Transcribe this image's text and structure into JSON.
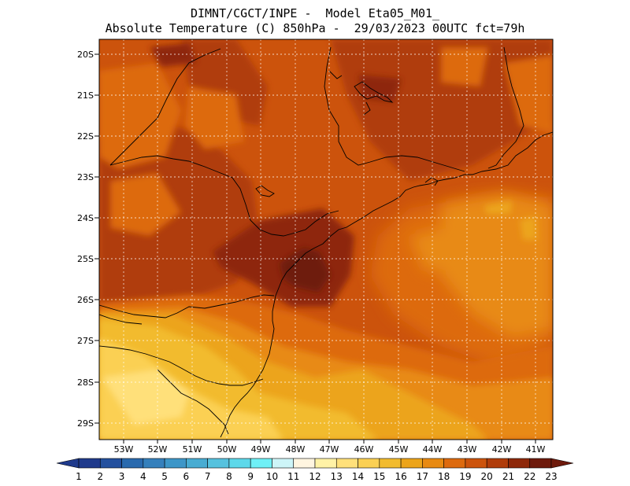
{
  "header": {
    "line1": "DIMNT/CGCT/INPE -  Model Eta05_M01_",
    "line2": "Absolute Temperature (C) 850hPa -  29/03/2023 00UTC fct=79h"
  },
  "map": {
    "region": "south-southeast Brazil",
    "lon_range": [
      -54.0,
      -40.5
    ],
    "lat_range": [
      -29.4,
      -19.7
    ],
    "lat_ticks": [
      "20S",
      "21S",
      "22S",
      "23S",
      "24S",
      "25S",
      "26S",
      "27S",
      "28S",
      "29S"
    ],
    "lon_ticks": [
      "53W",
      "52W",
      "51W",
      "50W",
      "49W",
      "48W",
      "47W",
      "46W",
      "45W",
      "44W",
      "43W",
      "42W",
      "41W"
    ],
    "grid": "dotted, on",
    "temperature_range_shown_c": [
      14,
      22
    ],
    "warmest_area": "around 25S 47.5W (21-22 C)",
    "coolest_area": "southwest corner near 29S 51-52W (14 C)"
  },
  "colorbar": {
    "labels": [
      "1",
      "2",
      "3",
      "4",
      "5",
      "6",
      "7",
      "8",
      "9",
      "10",
      "11",
      "12",
      "13",
      "14",
      "15",
      "16",
      "17",
      "18",
      "19",
      "20",
      "21",
      "22",
      "23"
    ],
    "colors": [
      "#1f3a8c",
      "#23509e",
      "#2a6aae",
      "#3580bc",
      "#3d96c8",
      "#48acd2",
      "#56c2de",
      "#5dd8ea",
      "#6ff0f6",
      "#cdf5f8",
      "#fff5e0",
      "#fff2a6",
      "#ffe07a",
      "#fbd053",
      "#f2bb2e",
      "#eca41a",
      "#e88a12",
      "#dd6a0e",
      "#cc530c",
      "#b03c0a",
      "#8e2809",
      "#6e1a0c"
    ]
  },
  "chart_data": {
    "type": "heatmap",
    "title": "Absolute Temperature (C) 850hPa -  29/03/2023 00UTC fct=79h",
    "colorbar_ticks": [
      1,
      2,
      3,
      4,
      5,
      6,
      7,
      8,
      9,
      10,
      11,
      12,
      13,
      14,
      15,
      16,
      17,
      18,
      19,
      20,
      21,
      22,
      23
    ],
    "x_ticks": [
      "53W",
      "52W",
      "51W",
      "50W",
      "49W",
      "48W",
      "47W",
      "46W",
      "45W",
      "44W",
      "43W",
      "42W",
      "41W"
    ],
    "y_ticks": [
      "20S",
      "21S",
      "22S",
      "23S",
      "24S",
      "25S",
      "26S",
      "27S",
      "28S",
      "29S"
    ],
    "xlim": [
      -54.0,
      -40.5
    ],
    "ylim": [
      -29.4,
      -19.7
    ],
    "grid": true
  }
}
